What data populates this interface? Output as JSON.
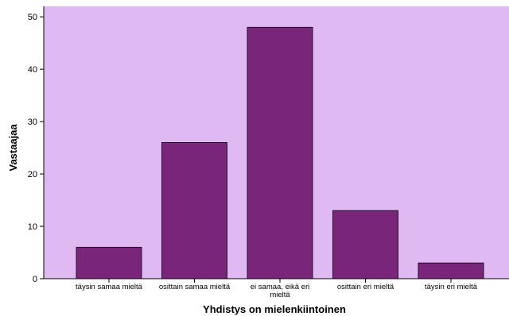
{
  "chart_data": {
    "type": "bar",
    "title": "",
    "xlabel": "Yhdistys on mielenkiintoinen",
    "ylabel": "Vastaajaa",
    "categories": [
      [
        "täysin samaa mieltä"
      ],
      [
        "osittain samaa mieltä"
      ],
      [
        "ei samaa, eikä eri",
        "mieltä"
      ],
      [
        "osittain eri mieltä"
      ],
      [
        "täysin eri mieltä"
      ]
    ],
    "values": [
      6,
      26,
      48,
      13,
      3
    ],
    "ylim": [
      0,
      52
    ],
    "yticks": [
      0,
      10,
      20,
      30,
      40,
      50
    ],
    "grid": false,
    "colors": {
      "plot_background": "#dfbaf2",
      "bar_fill": "#79267a",
      "bar_stroke": "#2a0d2c",
      "axis": "#000000"
    }
  }
}
